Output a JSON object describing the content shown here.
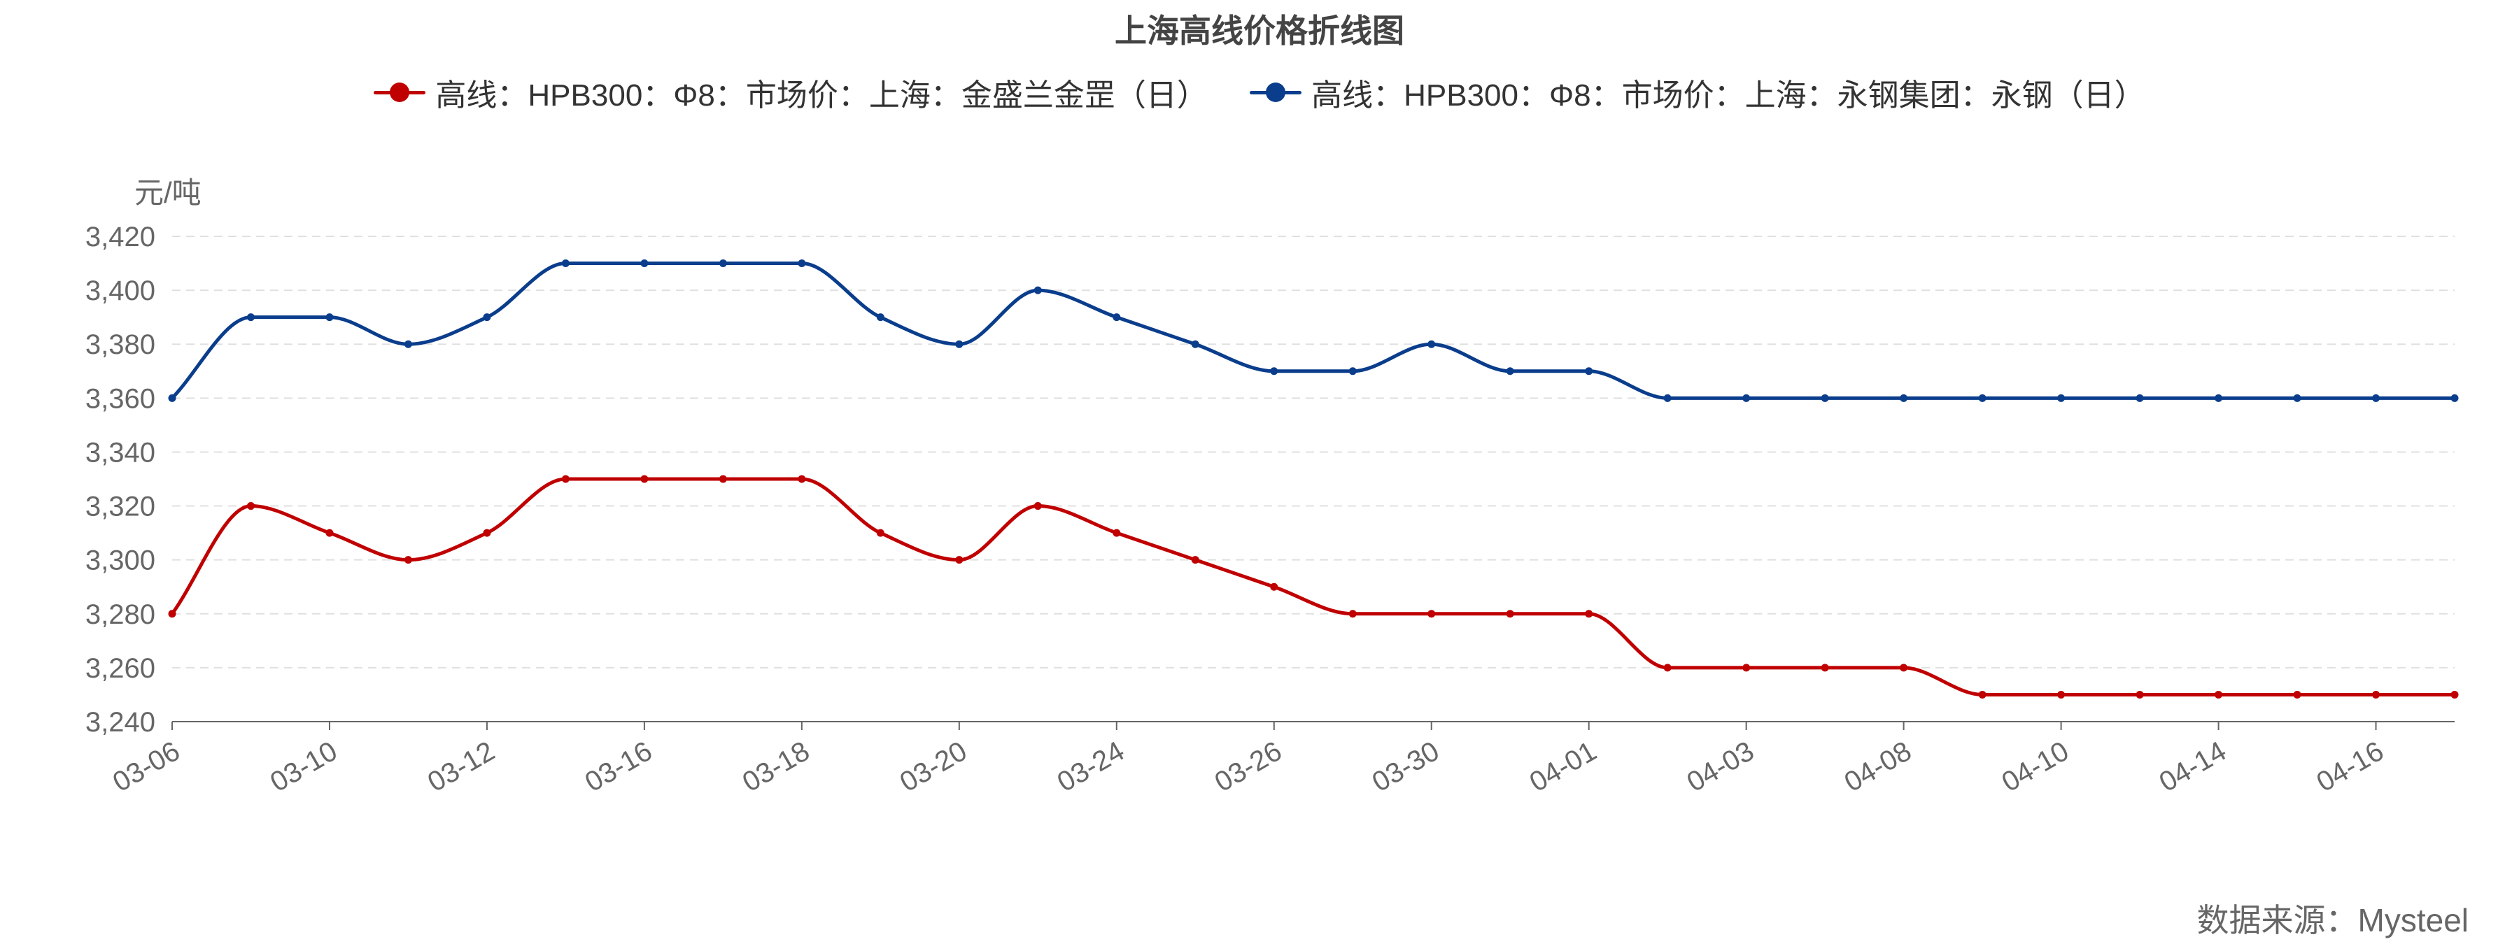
{
  "chart_data": {
    "type": "line",
    "title": "上海高线价格折线图",
    "ylabel": "元/吨",
    "xlabel": "",
    "ylim": [
      3240,
      3420
    ],
    "yticks": [
      3240,
      3260,
      3280,
      3300,
      3320,
      3340,
      3360,
      3380,
      3400,
      3420
    ],
    "grid": true,
    "legend_position": "top",
    "x_tick_labels": [
      "03-06",
      "03-10",
      "03-12",
      "03-16",
      "03-18",
      "03-20",
      "03-24",
      "03-26",
      "03-30",
      "04-01",
      "04-03",
      "04-08",
      "04-10",
      "04-14",
      "04-16"
    ],
    "series": [
      {
        "name": "高线：HPB300：Φ8：市场价：上海：金盛兰金罡（日）",
        "color": "#c00000",
        "values": [
          3280,
          3320,
          3310,
          3300,
          3310,
          3330,
          3330,
          3330,
          3330,
          3310,
          3300,
          3320,
          3310,
          3300,
          3290,
          3280,
          3280,
          3280,
          3280,
          3260,
          3260,
          3260,
          3260,
          3250,
          3250,
          3250,
          3250,
          3250,
          3250,
          3250
        ]
      },
      {
        "name": "高线：HPB300：Φ8：市场价：上海：永钢集团：永钢（日）",
        "color": "#0a3d8c",
        "values": [
          3360,
          3390,
          3390,
          3380,
          3390,
          3410,
          3410,
          3410,
          3410,
          3390,
          3380,
          3400,
          3390,
          3380,
          3370,
          3370,
          3380,
          3370,
          3370,
          3360,
          3360,
          3360,
          3360,
          3360,
          3360,
          3360,
          3360,
          3360,
          3360,
          3360
        ]
      }
    ]
  },
  "source": "数据来源：Mysteel"
}
